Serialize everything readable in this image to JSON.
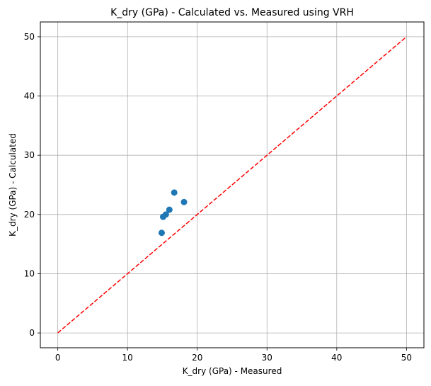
{
  "chart_data": {
    "type": "scatter",
    "title": "K_dry (GPa) - Calculated vs. Measured using VRH",
    "xlabel": "K_dry (GPa) - Measured",
    "ylabel": "K_dry (GPa) - Calculated",
    "xlim": [
      -2.5,
      52.5
    ],
    "ylim": [
      -2.5,
      52.5
    ],
    "xticks": [
      0,
      10,
      20,
      30,
      40,
      50
    ],
    "yticks": [
      0,
      10,
      20,
      30,
      40,
      50
    ],
    "grid": true,
    "series": [
      {
        "x": [
          14.9,
          15.1,
          15.5,
          16.0,
          16.7,
          18.1
        ],
        "y": [
          16.9,
          19.6,
          20.0,
          20.8,
          23.7,
          22.1
        ],
        "color": "#1f77b4",
        "marker": "circle"
      }
    ],
    "reference_line": {
      "x": [
        0,
        50
      ],
      "y": [
        0,
        50
      ],
      "color": "#ff0000",
      "style": "dashed"
    }
  }
}
